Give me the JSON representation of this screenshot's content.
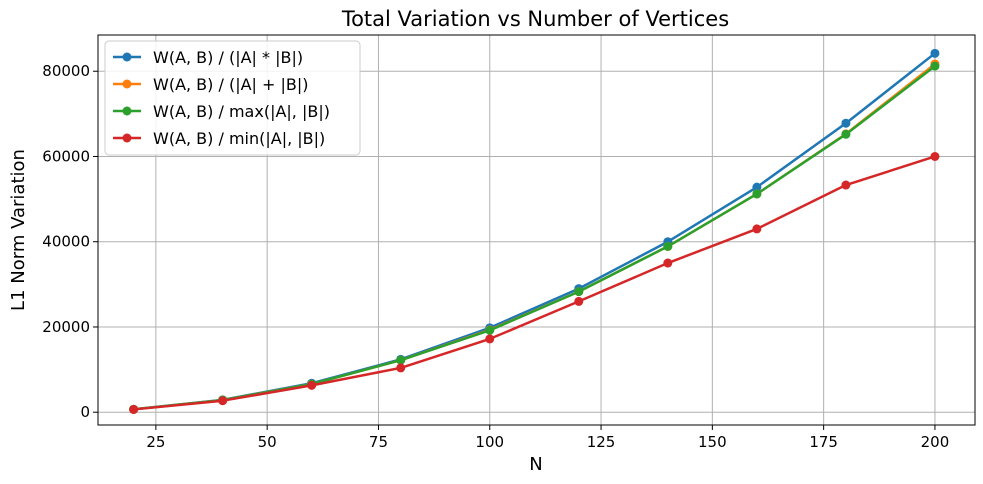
{
  "chart_data": {
    "type": "line",
    "title": "Total Variation vs Number of Vertices",
    "xlabel": "N",
    "ylabel": "L1 Norm Variation",
    "xlim": [
      12,
      209
    ],
    "ylim": [
      -3000,
      88500
    ],
    "xticks": [
      25,
      50,
      75,
      100,
      125,
      150,
      175,
      200
    ],
    "xtick_labels": [
      "25",
      "50",
      "75",
      "100",
      "125",
      "150",
      "175",
      "200"
    ],
    "yticks": [
      0,
      20000,
      40000,
      60000,
      80000
    ],
    "ytick_labels": [
      "0",
      "20000",
      "40000",
      "60000",
      "80000"
    ],
    "grid": true,
    "legend_position": "top-left",
    "x": [
      20,
      40,
      60,
      80,
      100,
      120,
      140,
      160,
      180,
      200
    ],
    "series": [
      {
        "name": "W(A, B) / (|A| * |B|)",
        "color": "#1f77b4",
        "values": [
          700,
          2900,
          6800,
          12400,
          19800,
          29000,
          40000,
          52800,
          67800,
          84200
        ]
      },
      {
        "name": "W(A, B) / (|A| + |B|)",
        "color": "#ff7f0e",
        "values": [
          680,
          2850,
          6600,
          12200,
          19300,
          28300,
          38900,
          51200,
          65300,
          81700
        ]
      },
      {
        "name": "W(A, B) / max(|A|, |B|)",
        "color": "#2ca02c",
        "values": [
          680,
          2840,
          6600,
          12200,
          19200,
          28300,
          38900,
          51200,
          65200,
          81200
        ]
      },
      {
        "name": "W(A, B) / min(|A|, |B|)",
        "color": "#d62728",
        "values": [
          650,
          2700,
          6300,
          10400,
          17200,
          26000,
          35000,
          43000,
          53300,
          60000
        ]
      }
    ]
  }
}
